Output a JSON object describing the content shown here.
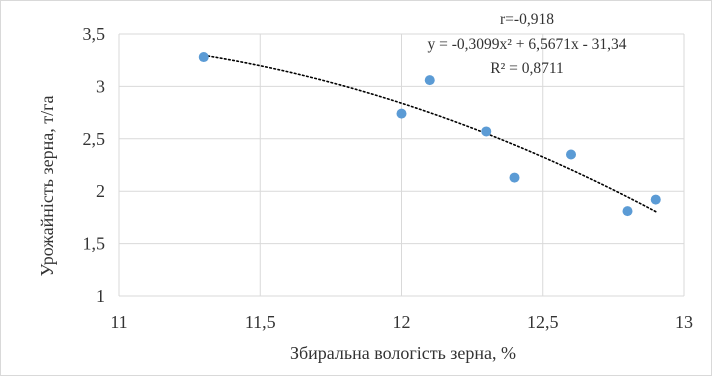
{
  "chart_data": {
    "type": "scatter",
    "xlabel": "Збиральна вологість зерна, %",
    "ylabel": "Урожайність зерна, т/га",
    "xlim": [
      11,
      13
    ],
    "ylim": [
      1,
      3.5
    ],
    "x_ticks": [
      11,
      11.5,
      12,
      12.5,
      13
    ],
    "x_tick_labels": [
      "11",
      "11,5",
      "12",
      "12,5",
      "13"
    ],
    "y_ticks": [
      1,
      1.5,
      2,
      2.5,
      3,
      3.5
    ],
    "y_tick_labels": [
      "1",
      "1,5",
      "2",
      "2,5",
      "3",
      "3,5"
    ],
    "grid": true,
    "series": [
      {
        "points": [
          {
            "x": 11.3,
            "y": 3.28
          },
          {
            "x": 12.0,
            "y": 2.74
          },
          {
            "x": 12.1,
            "y": 3.06
          },
          {
            "x": 12.3,
            "y": 2.57
          },
          {
            "x": 12.4,
            "y": 2.13
          },
          {
            "x": 12.6,
            "y": 2.35
          },
          {
            "x": 12.8,
            "y": 1.81
          },
          {
            "x": 12.9,
            "y": 1.92
          }
        ],
        "color": "#5b9bd5"
      }
    ],
    "trendline": {
      "type": "polynomial",
      "coefficients": {
        "a": -0.3099,
        "b": 6.5671,
        "c": -31.34
      },
      "x_range": [
        11.3,
        12.9
      ],
      "style": "dotted",
      "color": "#000000"
    },
    "annotations": {
      "r": "r=-0,918",
      "equation": "y = -0,3099x² + 6,5671x - 31,34",
      "r_squared": "R² = 0,8711"
    }
  }
}
